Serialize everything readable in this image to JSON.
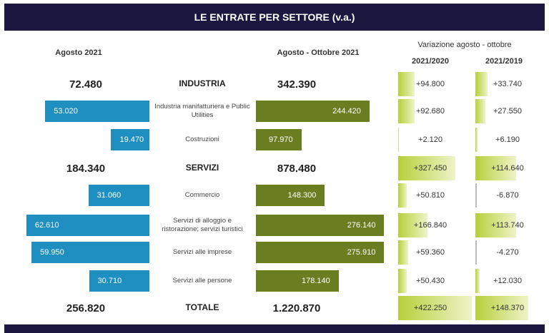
{
  "chart_data": {
    "type": "bar",
    "title": "LE ENTRATE PER SETTORE (v.a.)",
    "headers": {
      "left": "Agosto 2021",
      "mid": "Agosto - Ottobre 2021",
      "var": "Variazione agosto - ottobre",
      "var1": "2021/2020",
      "var2": "2021/2019"
    },
    "rows": [
      {
        "label": "INDUSTRIA",
        "total": true,
        "ago": "72.480",
        "agoval": 72480,
        "aot": "342.390",
        "aotval": 342390,
        "v1": "+94.800",
        "v1val": 94800,
        "v2": "+33.740",
        "v2val": 33740
      },
      {
        "label": "Industria manifatturiera e Public Utilities",
        "total": false,
        "ago": "53.020",
        "agoval": 53020,
        "aot": "244.420",
        "aotval": 244420,
        "v1": "+92.680",
        "v1val": 92680,
        "v2": "+27.550",
        "v2val": 27550
      },
      {
        "label": "Costruzioni",
        "total": false,
        "ago": "19.470",
        "agoval": 19470,
        "aot": "97.970",
        "aotval": 97970,
        "v1": "+2.120",
        "v1val": 2120,
        "v2": "+6.190",
        "v2val": 6190
      },
      {
        "label": "SERVIZI",
        "total": true,
        "ago": "184.340",
        "agoval": 184340,
        "aot": "878.480",
        "aotval": 878480,
        "v1": "+327.450",
        "v1val": 327450,
        "v2": "+114.640",
        "v2val": 114640
      },
      {
        "label": "Commercio",
        "total": false,
        "ago": "31.060",
        "agoval": 31060,
        "aot": "148.300",
        "aotval": 148300,
        "v1": "+50.810",
        "v1val": 50810,
        "v2": "-6.870",
        "v2val": -6870
      },
      {
        "label": "Servizi di alloggio e ristorazione; servizi turistici",
        "total": false,
        "ago": "62.610",
        "agoval": 62610,
        "aot": "276.140",
        "aotval": 276140,
        "v1": "+166.840",
        "v1val": 166840,
        "v2": "+113.740",
        "v2val": 113740
      },
      {
        "label": "Servizi alle imprese",
        "total": false,
        "ago": "59.950",
        "agoval": 59950,
        "aot": "275.910",
        "aotval": 275910,
        "v1": "+59.360",
        "v1val": 59360,
        "v2": "-4.270",
        "v2val": -4270
      },
      {
        "label": "Servizi alle persone",
        "total": false,
        "ago": "30.710",
        "agoval": 30710,
        "aot": "178.140",
        "aotval": 178140,
        "v1": "+50.430",
        "v1val": 50430,
        "v2": "+12.030",
        "v2val": 12030
      },
      {
        "label": "TOTALE",
        "total": true,
        "ago": "256.820",
        "agoval": 256820,
        "aot": "1.220.870",
        "aotval": 1220870,
        "v1": "+422.250",
        "v1val": 422250,
        "v2": "+148.370",
        "v2val": 148370
      }
    ],
    "colors": {
      "header": "#1c1740",
      "ago": "#1e8fc0",
      "aot": "#6b7d21",
      "var": "#b7cf3a"
    }
  }
}
